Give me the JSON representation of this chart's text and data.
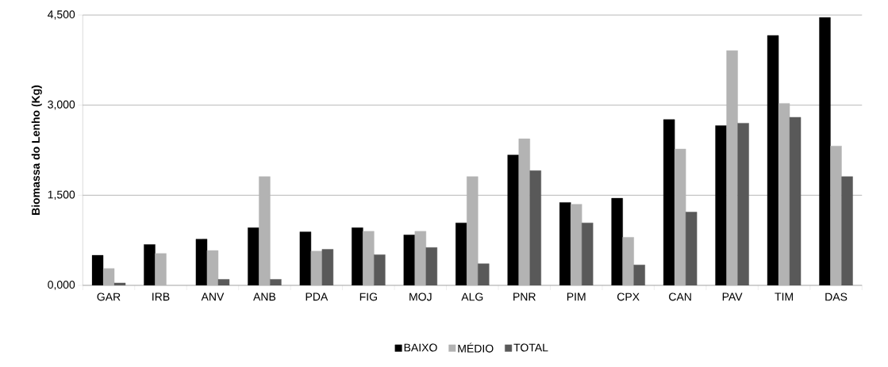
{
  "chart_data": {
    "type": "bar",
    "ylabel": "Biomassa do Lenho (Kg)",
    "categories": [
      "GAR",
      "IRB",
      "ANV",
      "ANB",
      "PDA",
      "FIG",
      "MOJ",
      "ALG",
      "PNR",
      "PIM",
      "CPX",
      "CAN",
      "PAV",
      "TIM",
      "DAS"
    ],
    "series": [
      {
        "name": "BAIXO",
        "color": "#000000",
        "values": [
          500,
          680,
          770,
          960,
          890,
          960,
          840,
          1040,
          2170,
          1380,
          1450,
          2760,
          2660,
          4160,
          4460
        ]
      },
      {
        "name": "MÉDIO",
        "color": "#b3b3b3",
        "values": [
          280,
          530,
          580,
          1810,
          570,
          900,
          900,
          1810,
          2440,
          1350,
          800,
          2270,
          3910,
          3030,
          2320
        ]
      },
      {
        "name": "TOTAL",
        "color": "#595959",
        "values": [
          40,
          null,
          100,
          100,
          600,
          510,
          630,
          360,
          1910,
          1040,
          340,
          1220,
          2700,
          2800,
          1810
        ]
      }
    ],
    "ylim": [
      0,
      4500
    ],
    "yticks": [
      {
        "value": 0,
        "label": "0,000"
      },
      {
        "value": 1500,
        "label": "1,500"
      },
      {
        "value": 3000,
        "label": "3,000"
      },
      {
        "value": 4500,
        "label": "4,500"
      }
    ],
    "grid": "y",
    "legend": "bottom"
  }
}
